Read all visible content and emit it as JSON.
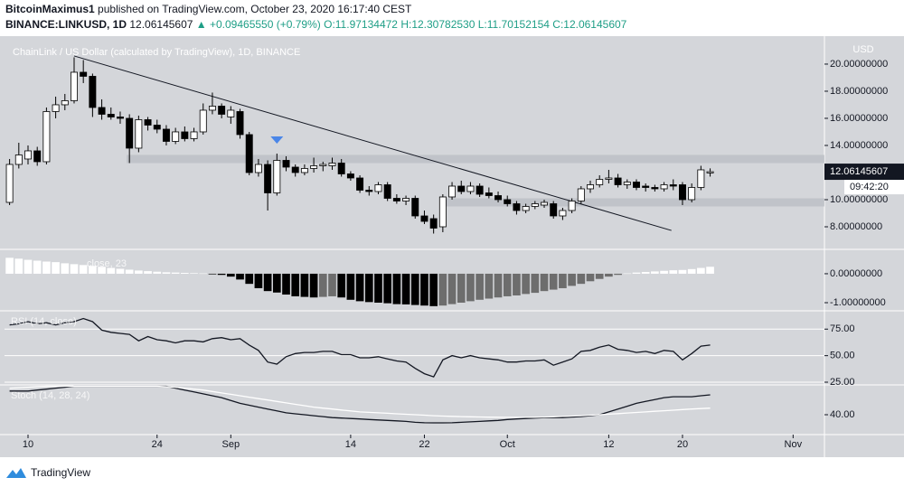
{
  "header": {
    "author": "BitcoinMaximus1",
    "published": "published on TradingView.com, October 23, 2020 16:17:40 CEST",
    "symbol": "BINANCE:LINKUSD, 1D",
    "price": "12.06145607",
    "change": "▲ +0.09465550 (+0.79%)",
    "ohlc": [
      "O:11.97134472",
      "H:12.30782530",
      "L:11.70152154",
      "C:12.06145607"
    ]
  },
  "footer": {
    "brand": "TradingView"
  },
  "chart_data": [
    {
      "type": "candlestick",
      "title": "ChainLink / US Dollar (calculated by TradingView), 1D, BINANCE",
      "unit": "USD",
      "up_color": "#ffffff",
      "down_color": "#000000",
      "x": [
        -2,
        -1,
        0,
        1,
        2,
        3,
        4,
        5,
        6,
        7,
        8,
        9,
        10,
        11,
        12,
        13,
        14,
        15,
        16,
        17,
        18,
        19,
        20,
        21,
        22,
        23,
        24,
        25,
        26,
        27,
        28,
        29,
        30,
        31,
        32,
        33,
        34,
        35,
        36,
        37,
        38,
        39,
        40,
        41,
        42,
        43,
        44,
        45,
        46,
        47,
        48,
        49,
        50,
        51,
        52,
        53,
        54,
        55,
        56,
        57,
        58,
        59,
        60,
        61,
        62,
        63,
        64,
        65,
        66,
        67,
        68,
        69,
        70,
        71,
        72,
        73,
        74
      ],
      "open": [
        9.8,
        12.6,
        13.0,
        13.6,
        12.8,
        16.5,
        17.0,
        17.3,
        19.4,
        19.1,
        16.8,
        16.3,
        16.1,
        16.0,
        13.8,
        15.9,
        15.5,
        15.2,
        14.3,
        15.0,
        14.5,
        15.0,
        16.6,
        16.9,
        16.1,
        16.5,
        14.8,
        12.0,
        12.6,
        10.5,
        12.9,
        12.4,
        12.0,
        12.3,
        12.5,
        12.5,
        12.7,
        11.9,
        11.6,
        10.7,
        10.6,
        11.1,
        10.1,
        9.9,
        10.1,
        8.8,
        8.6,
        8.0,
        10.2,
        11.0,
        10.6,
        11.0,
        10.5,
        10.3,
        10.0,
        9.7,
        9.2,
        9.5,
        9.6,
        9.7,
        8.8,
        9.2,
        9.9,
        10.8,
        11.1,
        11.5,
        11.6,
        11.1,
        11.3,
        11.0,
        10.9,
        10.8,
        11.1,
        11.1,
        10.0,
        10.9,
        11.97134472
      ],
      "high": [
        13.0,
        14.2,
        14.0,
        13.9,
        16.8,
        17.6,
        17.8,
        20.5,
        20.3,
        19.3,
        17.4,
        16.8,
        16.5,
        16.3,
        16.2,
        16.1,
        15.9,
        15.5,
        15.3,
        15.4,
        15.3,
        17.1,
        17.9,
        17.1,
        16.9,
        16.7,
        15.0,
        13.0,
        12.9,
        13.4,
        13.2,
        12.6,
        12.6,
        13.1,
        12.8,
        13.1,
        13.0,
        12.1,
        11.8,
        11.0,
        11.3,
        11.3,
        10.4,
        10.3,
        10.3,
        9.2,
        8.9,
        10.4,
        11.3,
        11.4,
        11.3,
        11.2,
        10.9,
        10.6,
        10.3,
        9.9,
        9.7,
        9.9,
        10.0,
        9.9,
        9.4,
        10.1,
        11.0,
        11.4,
        11.8,
        12.2,
        11.9,
        11.5,
        11.5,
        11.2,
        11.1,
        11.3,
        11.5,
        11.3,
        11.2,
        12.5,
        12.3078253
      ],
      "low": [
        9.6,
        12.3,
        12.6,
        12.5,
        12.6,
        16.0,
        16.6,
        17.1,
        18.6,
        16.1,
        15.9,
        15.9,
        15.6,
        12.7,
        13.5,
        15.1,
        14.9,
        14.0,
        14.1,
        14.3,
        14.3,
        14.8,
        16.3,
        16.0,
        15.6,
        14.5,
        11.8,
        11.7,
        9.2,
        10.3,
        12.1,
        11.7,
        11.8,
        12.0,
        12.1,
        12.2,
        11.7,
        11.4,
        10.5,
        10.3,
        10.4,
        9.9,
        9.7,
        9.6,
        8.6,
        8.2,
        7.5,
        7.6,
        10.0,
        10.4,
        10.4,
        10.2,
        10.1,
        9.8,
        9.5,
        8.9,
        9.0,
        9.3,
        9.4,
        8.6,
        8.5,
        9.0,
        9.7,
        10.5,
        10.9,
        11.2,
        10.9,
        10.8,
        10.7,
        10.6,
        10.6,
        10.6,
        10.7,
        9.6,
        9.8,
        10.7,
        11.70152154
      ],
      "close": [
        12.6,
        13.3,
        13.6,
        12.8,
        16.5,
        17.0,
        17.3,
        19.4,
        19.1,
        16.8,
        16.3,
        16.1,
        16.0,
        13.8,
        15.9,
        15.5,
        15.2,
        14.3,
        15.0,
        14.5,
        15.0,
        16.6,
        16.9,
        16.3,
        16.6,
        14.8,
        12.0,
        12.6,
        10.5,
        12.9,
        12.4,
        12.0,
        12.3,
        12.5,
        12.6,
        12.7,
        11.9,
        11.6,
        10.7,
        10.6,
        11.1,
        10.1,
        9.9,
        10.1,
        8.8,
        8.4,
        7.9,
        10.2,
        11.0,
        10.6,
        11.0,
        10.4,
        10.3,
        10.0,
        9.7,
        9.2,
        9.5,
        9.7,
        9.8,
        8.8,
        9.2,
        9.9,
        10.8,
        11.1,
        11.5,
        11.6,
        11.1,
        11.3,
        10.9,
        10.9,
        10.8,
        11.1,
        11.0,
        10.0,
        10.9,
        12.2,
        12.06145607
      ],
      "xlim": [
        -2.55,
        86.4
      ],
      "xticks": [
        {
          "value": 0,
          "label": "10"
        },
        {
          "value": 14,
          "label": "24"
        },
        {
          "value": 22,
          "label": "Sep"
        },
        {
          "value": 35,
          "label": "14"
        },
        {
          "value": 43,
          "label": "22"
        },
        {
          "value": 52,
          "label": "Oct"
        },
        {
          "value": 63,
          "label": "12"
        },
        {
          "value": 71,
          "label": "20"
        },
        {
          "value": 83,
          "label": "Nov"
        }
      ],
      "ylim": [
        6.4,
        21.73
      ],
      "yticks": [
        {
          "value": 8,
          "label": "8.00000000"
        },
        {
          "value": 10,
          "label": "10.00000000"
        },
        {
          "value": 14,
          "label": "14.00000000"
        },
        {
          "value": 16,
          "label": "16.00000000"
        },
        {
          "value": 18,
          "label": "18.00000000"
        },
        {
          "value": 20,
          "label": "20.00000000"
        }
      ],
      "last_price": 12.06145607,
      "countdown": "09:42:20",
      "trendline": {
        "x": [
          5,
          69.8
        ],
        "y": [
          20.6,
          7.73
        ],
        "color": "#131722"
      },
      "zones": [
        {
          "x_start": 10.7,
          "low": 12.7,
          "high": 13.3
        },
        {
          "x_start": 45,
          "low": 9.5,
          "high": 10.1
        }
      ],
      "zone_color": "#b8bbc2",
      "marker": {
        "x": 27,
        "y": 14.4,
        "color": "#4a86e8"
      }
    },
    {
      "type": "bar",
      "title": "close, 23",
      "colors": {
        "positive": "#ffffff",
        "falling": "#000000",
        "rising": "#6d6d6d"
      },
      "values": [
        0.55,
        0.52,
        0.48,
        0.45,
        0.42,
        0.4,
        0.36,
        0.33,
        0.3,
        0.27,
        0.24,
        0.2,
        0.17,
        0.14,
        0.11,
        0.09,
        0.07,
        0.05,
        0.04,
        0.03,
        0.02,
        0.01,
        -0.02,
        -0.04,
        -0.1,
        -0.2,
        -0.35,
        -0.5,
        -0.6,
        -0.65,
        -0.72,
        -0.78,
        -0.8,
        -0.82,
        -0.8,
        -0.78,
        -0.82,
        -0.9,
        -0.95,
        -0.98,
        -1.0,
        -1.02,
        -1.05,
        -1.06,
        -1.08,
        -1.1,
        -1.12,
        -1.1,
        -1.05,
        -1.0,
        -0.95,
        -0.9,
        -0.86,
        -0.82,
        -0.78,
        -0.75,
        -0.7,
        -0.66,
        -0.6,
        -0.55,
        -0.5,
        -0.42,
        -0.35,
        -0.26,
        -0.18,
        -0.1,
        -0.04,
        0.01,
        0.04,
        0.06,
        0.08,
        0.1,
        0.12,
        0.13,
        0.16,
        0.2,
        0.24
      ],
      "ylim": [
        -1.25,
        0.81
      ],
      "yticks": [
        {
          "value": -1,
          "label": "-1.00000000"
        },
        {
          "value": 0,
          "label": "0.00000000"
        }
      ]
    },
    {
      "type": "line",
      "title": "RSI (14, close)",
      "color": "#131722",
      "values": [
        79,
        80,
        82,
        80,
        81,
        79,
        81,
        82,
        85,
        82,
        74,
        72,
        71,
        70,
        64,
        68,
        65,
        64,
        62,
        64,
        64,
        63,
        66,
        67,
        65,
        66,
        60,
        55,
        44,
        42,
        49,
        52,
        53,
        53,
        54,
        54,
        51,
        51,
        48,
        48,
        49,
        47,
        45,
        44,
        38,
        33,
        30,
        46,
        50,
        48,
        50,
        48,
        47,
        46,
        44,
        44,
        45,
        45,
        46,
        41,
        44,
        47,
        54,
        55,
        58,
        60,
        56,
        55,
        53,
        54,
        52,
        55,
        54,
        46,
        52,
        59,
        60
      ],
      "ylim": [
        23.3,
        91.4
      ],
      "yticks": [
        {
          "value": 25,
          "label": "25.00"
        },
        {
          "value": 50,
          "label": "50.00"
        },
        {
          "value": 75,
          "label": "75.00"
        }
      ]
    },
    {
      "type": "line",
      "title": "Stoch (14, 28, 24)",
      "series": [
        {
          "color": "#131722",
          "values": [
            65,
            65,
            65,
            66,
            67,
            68,
            69,
            70,
            70,
            70,
            70,
            70,
            70,
            70,
            70,
            70,
            70,
            70,
            68,
            66,
            64,
            62,
            60,
            58,
            55,
            52,
            50,
            48,
            46,
            44,
            42,
            41,
            40,
            39,
            38,
            37,
            36.5,
            36,
            35.5,
            35,
            34.5,
            34,
            33.5,
            33,
            32,
            31.5,
            31.4,
            31.4,
            31.5,
            32,
            32.5,
            33,
            33.5,
            34,
            35,
            35.5,
            36,
            36.5,
            37,
            37,
            37,
            37.5,
            38,
            39,
            40,
            43,
            46,
            49,
            52,
            54,
            56,
            58,
            59,
            59,
            59,
            60,
            61
          ]
        },
        {
          "color": "#ffffff",
          "values": [
            68,
            68.5,
            69,
            69.5,
            70,
            70,
            70,
            70,
            70,
            70,
            70,
            70,
            70,
            70,
            70,
            70,
            70,
            69.5,
            69,
            68,
            67,
            66,
            64.5,
            63,
            61.5,
            60,
            58.5,
            57,
            55.5,
            54,
            52.5,
            51,
            49.5,
            48,
            47,
            46,
            45,
            44,
            43,
            42.5,
            42,
            41.5,
            41,
            40.5,
            40,
            39.5,
            39,
            38.6,
            38.3,
            38,
            37.8,
            37.6,
            37.4,
            37.3,
            37.2,
            37.2,
            37.2,
            37.3,
            37.5,
            37.8,
            38.2,
            38.6,
            39,
            39.5,
            40,
            40.6,
            41.2,
            41.8,
            42.4,
            43,
            43.6,
            44.2,
            44.8,
            45.4,
            46,
            46.5,
            47
          ]
        }
      ],
      "ylim": [
        20,
        70.5
      ],
      "yticks": [
        {
          "value": 40,
          "label": "40.00"
        }
      ]
    }
  ]
}
